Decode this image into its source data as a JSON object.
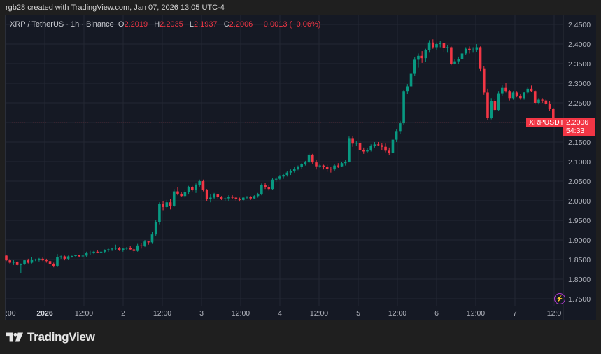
{
  "header": {
    "credit": "rgb28 created with TradingView.com, Jan 07, 2026 13:05 UTC-4"
  },
  "legend": {
    "symbol": "XRP / TetherUS · 1h · Binance",
    "open_label": "O",
    "open": "2.2019",
    "high_label": "H",
    "high": "2.2035",
    "low_label": "L",
    "low": "2.1937",
    "close_label": "C",
    "close": "2.2006",
    "change": "−0.0013 (−0.06%)"
  },
  "price_tag": {
    "symbol": "XRPUSDT",
    "price": "2.2006",
    "countdown": "54:33"
  },
  "branding": {
    "logo_text": "TradingView",
    "bolt_icon": "⚡"
  },
  "colors": {
    "up": "#089981",
    "down": "#f23645",
    "background": "#151924",
    "grid": "#242833",
    "price_line": "#f23645"
  },
  "chart_data": {
    "type": "candlestick",
    "title": "XRP / TetherUS · 1h · Binance",
    "xlabel": "",
    "ylabel": "",
    "ylim": [
      1.73,
      2.47
    ],
    "grid": true,
    "y_ticks": [
      "2.4500",
      "2.4000",
      "2.3500",
      "2.3000",
      "2.2500",
      "2.2000",
      "2.1500",
      "2.1000",
      "2.0500",
      "2.0000",
      "1.9500",
      "1.9000",
      "1.8500",
      "1.8000",
      "1.7500"
    ],
    "x_ticks": [
      ":00",
      "2026",
      "12:00",
      "2",
      "12:00",
      "3",
      "12:00",
      "4",
      "12:00",
      "5",
      "12:00",
      "6",
      "12:00",
      "7",
      "12:0"
    ],
    "last_price": 2.2006,
    "candles": [
      [
        1.86,
        1.862,
        1.846,
        1.848
      ],
      [
        1.848,
        1.852,
        1.838,
        1.842
      ],
      [
        1.842,
        1.848,
        1.836,
        1.844
      ],
      [
        1.844,
        1.846,
        1.834,
        1.836
      ],
      [
        1.836,
        1.84,
        1.816,
        1.838
      ],
      [
        1.838,
        1.85,
        1.836,
        1.848
      ],
      [
        1.848,
        1.852,
        1.84,
        1.842
      ],
      [
        1.842,
        1.856,
        1.84,
        1.85
      ],
      [
        1.85,
        1.852,
        1.846,
        1.85
      ],
      [
        1.85,
        1.854,
        1.845,
        1.852
      ],
      [
        1.852,
        1.855,
        1.846,
        1.848
      ],
      [
        1.848,
        1.852,
        1.842,
        1.846
      ],
      [
        1.846,
        1.848,
        1.834,
        1.838
      ],
      [
        1.838,
        1.842,
        1.83,
        1.834
      ],
      [
        1.834,
        1.864,
        1.832,
        1.856
      ],
      [
        1.856,
        1.86,
        1.852,
        1.858
      ],
      [
        1.858,
        1.86,
        1.848,
        1.852
      ],
      [
        1.852,
        1.86,
        1.85,
        1.858
      ],
      [
        1.858,
        1.86,
        1.855,
        1.859
      ],
      [
        1.859,
        1.862,
        1.856,
        1.861
      ],
      [
        1.861,
        1.862,
        1.856,
        1.858
      ],
      [
        1.858,
        1.862,
        1.854,
        1.86
      ],
      [
        1.86,
        1.87,
        1.856,
        1.866
      ],
      [
        1.866,
        1.872,
        1.862,
        1.868
      ],
      [
        1.868,
        1.872,
        1.864,
        1.87
      ],
      [
        1.87,
        1.874,
        1.866,
        1.868
      ],
      [
        1.868,
        1.872,
        1.862,
        1.87
      ],
      [
        1.87,
        1.876,
        1.866,
        1.874
      ],
      [
        1.874,
        1.878,
        1.87,
        1.876
      ],
      [
        1.876,
        1.88,
        1.872,
        1.878
      ],
      [
        1.878,
        1.888,
        1.874,
        1.88
      ],
      [
        1.88,
        1.882,
        1.872,
        1.874
      ],
      [
        1.874,
        1.88,
        1.87,
        1.878
      ],
      [
        1.878,
        1.882,
        1.874,
        1.88
      ],
      [
        1.88,
        1.884,
        1.874,
        1.876
      ],
      [
        1.876,
        1.88,
        1.868,
        1.872
      ],
      [
        1.872,
        1.89,
        1.87,
        1.886
      ],
      [
        1.886,
        1.892,
        1.878,
        1.884
      ],
      [
        1.884,
        1.9,
        1.882,
        1.896
      ],
      [
        1.896,
        1.898,
        1.888,
        1.894
      ],
      [
        1.894,
        1.92,
        1.89,
        1.914
      ],
      [
        1.914,
        1.95,
        1.91,
        1.946
      ],
      [
        1.946,
        1.996,
        1.94,
        1.992
      ],
      [
        1.992,
        2.0,
        1.976,
        1.984
      ],
      [
        1.984,
        2.002,
        1.98,
        1.996
      ],
      [
        1.996,
        2.004,
        1.978,
        1.986
      ],
      [
        1.986,
        2.03,
        1.984,
        2.024
      ],
      [
        2.024,
        2.034,
        2.014,
        2.018
      ],
      [
        2.018,
        2.022,
        2.01,
        2.012
      ],
      [
        2.012,
        2.028,
        2.008,
        2.022
      ],
      [
        2.022,
        2.038,
        2.016,
        2.034
      ],
      [
        2.034,
        2.038,
        2.024,
        2.028
      ],
      [
        2.028,
        2.044,
        2.02,
        2.04
      ],
      [
        2.04,
        2.054,
        2.036,
        2.05
      ],
      [
        2.05,
        2.054,
        2.024,
        2.028
      ],
      [
        2.028,
        2.03,
        2.0,
        2.004
      ],
      [
        2.004,
        2.016,
        1.996,
        2.008
      ],
      [
        2.008,
        2.02,
        2.004,
        2.016
      ],
      [
        2.016,
        2.018,
        2.006,
        2.01
      ],
      [
        2.01,
        2.012,
        2.002,
        2.004
      ],
      [
        2.004,
        2.008,
        2.0,
        2.006
      ],
      [
        2.006,
        2.014,
        2.0,
        2.01
      ],
      [
        2.01,
        2.014,
        2.004,
        2.008
      ],
      [
        2.008,
        2.01,
        2.0,
        2.004
      ],
      [
        2.004,
        2.008,
        1.998,
        2.002
      ],
      [
        2.002,
        2.01,
        1.998,
        2.008
      ],
      [
        2.008,
        2.012,
        2.004,
        2.01
      ],
      [
        2.01,
        2.012,
        2.002,
        2.006
      ],
      [
        2.006,
        2.014,
        2.004,
        2.012
      ],
      [
        2.012,
        2.02,
        2.008,
        2.016
      ],
      [
        2.016,
        2.044,
        2.014,
        2.04
      ],
      [
        2.04,
        2.046,
        2.03,
        2.034
      ],
      [
        2.034,
        2.04,
        2.026,
        2.03
      ],
      [
        2.03,
        2.058,
        2.028,
        2.054
      ],
      [
        2.054,
        2.06,
        2.048,
        2.056
      ],
      [
        2.056,
        2.066,
        2.052,
        2.062
      ],
      [
        2.062,
        2.07,
        2.056,
        2.066
      ],
      [
        2.066,
        2.076,
        2.062,
        2.072
      ],
      [
        2.072,
        2.08,
        2.066,
        2.076
      ],
      [
        2.076,
        2.086,
        2.072,
        2.082
      ],
      [
        2.082,
        2.09,
        2.078,
        2.086
      ],
      [
        2.086,
        2.096,
        2.082,
        2.094
      ],
      [
        2.094,
        2.102,
        2.09,
        2.098
      ],
      [
        2.098,
        2.122,
        2.096,
        2.118
      ],
      [
        2.118,
        2.12,
        2.094,
        2.098
      ],
      [
        2.098,
        2.104,
        2.08,
        2.088
      ],
      [
        2.088,
        2.094,
        2.084,
        2.09
      ],
      [
        2.09,
        2.092,
        2.08,
        2.086
      ],
      [
        2.086,
        2.092,
        2.074,
        2.082
      ],
      [
        2.082,
        2.086,
        2.072,
        2.08
      ],
      [
        2.08,
        2.094,
        2.076,
        2.09
      ],
      [
        2.09,
        2.096,
        2.084,
        2.088
      ],
      [
        2.088,
        2.1,
        2.086,
        2.096
      ],
      [
        2.096,
        2.104,
        2.09,
        2.1
      ],
      [
        2.1,
        2.164,
        2.098,
        2.16
      ],
      [
        2.16,
        2.166,
        2.138,
        2.146
      ],
      [
        2.146,
        2.152,
        2.14,
        2.148
      ],
      [
        2.148,
        2.154,
        2.126,
        2.13
      ],
      [
        2.13,
        2.136,
        2.12,
        2.126
      ],
      [
        2.126,
        2.134,
        2.122,
        2.13
      ],
      [
        2.13,
        2.144,
        2.126,
        2.14
      ],
      [
        2.14,
        2.15,
        2.136,
        2.144
      ],
      [
        2.144,
        2.15,
        2.14,
        2.142
      ],
      [
        2.142,
        2.148,
        2.13,
        2.138
      ],
      [
        2.138,
        2.146,
        2.124,
        2.128
      ],
      [
        2.128,
        2.136,
        2.116,
        2.122
      ],
      [
        2.122,
        2.16,
        2.12,
        2.156
      ],
      [
        2.156,
        2.182,
        2.15,
        2.178
      ],
      [
        2.178,
        2.204,
        2.17,
        2.198
      ],
      [
        2.198,
        2.284,
        2.194,
        2.28
      ],
      [
        2.28,
        2.298,
        2.272,
        2.292
      ],
      [
        2.292,
        2.328,
        2.288,
        2.324
      ],
      [
        2.324,
        2.366,
        2.318,
        2.36
      ],
      [
        2.36,
        2.376,
        2.34,
        2.37
      ],
      [
        2.37,
        2.382,
        2.352,
        2.364
      ],
      [
        2.364,
        2.388,
        2.354,
        2.384
      ],
      [
        2.384,
        2.41,
        2.378,
        2.404
      ],
      [
        2.404,
        2.412,
        2.388,
        2.392
      ],
      [
        2.392,
        2.404,
        2.386,
        2.4
      ],
      [
        2.4,
        2.408,
        2.392,
        2.402
      ],
      [
        2.402,
        2.404,
        2.38,
        2.39
      ],
      [
        2.39,
        2.398,
        2.378,
        2.392
      ],
      [
        2.392,
        2.394,
        2.346,
        2.35
      ],
      [
        2.35,
        2.362,
        2.348,
        2.356
      ],
      [
        2.356,
        2.368,
        2.35,
        2.362
      ],
      [
        2.362,
        2.38,
        2.358,
        2.376
      ],
      [
        2.376,
        2.392,
        2.372,
        2.388
      ],
      [
        2.388,
        2.394,
        2.376,
        2.384
      ],
      [
        2.384,
        2.392,
        2.378,
        2.386
      ],
      [
        2.386,
        2.4,
        2.38,
        2.392
      ],
      [
        2.392,
        2.394,
        2.33,
        2.338
      ],
      [
        2.338,
        2.344,
        2.27,
        2.276
      ],
      [
        2.276,
        2.286,
        2.206,
        2.212
      ],
      [
        2.212,
        2.262,
        2.208,
        2.254
      ],
      [
        2.254,
        2.26,
        2.228,
        2.232
      ],
      [
        2.232,
        2.28,
        2.23,
        2.274
      ],
      [
        2.274,
        2.296,
        2.268,
        2.288
      ],
      [
        2.288,
        2.3,
        2.276,
        2.28
      ],
      [
        2.28,
        2.284,
        2.256,
        2.262
      ],
      [
        2.262,
        2.28,
        2.258,
        2.276
      ],
      [
        2.276,
        2.28,
        2.264,
        2.268
      ],
      [
        2.268,
        2.272,
        2.258,
        2.262
      ],
      [
        2.262,
        2.278,
        2.258,
        2.276
      ],
      [
        2.276,
        2.29,
        2.272,
        2.286
      ],
      [
        2.286,
        2.294,
        2.278,
        2.28
      ],
      [
        2.28,
        2.282,
        2.246,
        2.25
      ],
      [
        2.25,
        2.262,
        2.246,
        2.258
      ],
      [
        2.258,
        2.262,
        2.25,
        2.256
      ],
      [
        2.256,
        2.26,
        2.244,
        2.248
      ],
      [
        2.248,
        2.254,
        2.23,
        2.234
      ],
      [
        2.234,
        2.236,
        2.194,
        2.202
      ],
      [
        2.202,
        2.204,
        2.194,
        2.2006
      ]
    ]
  }
}
